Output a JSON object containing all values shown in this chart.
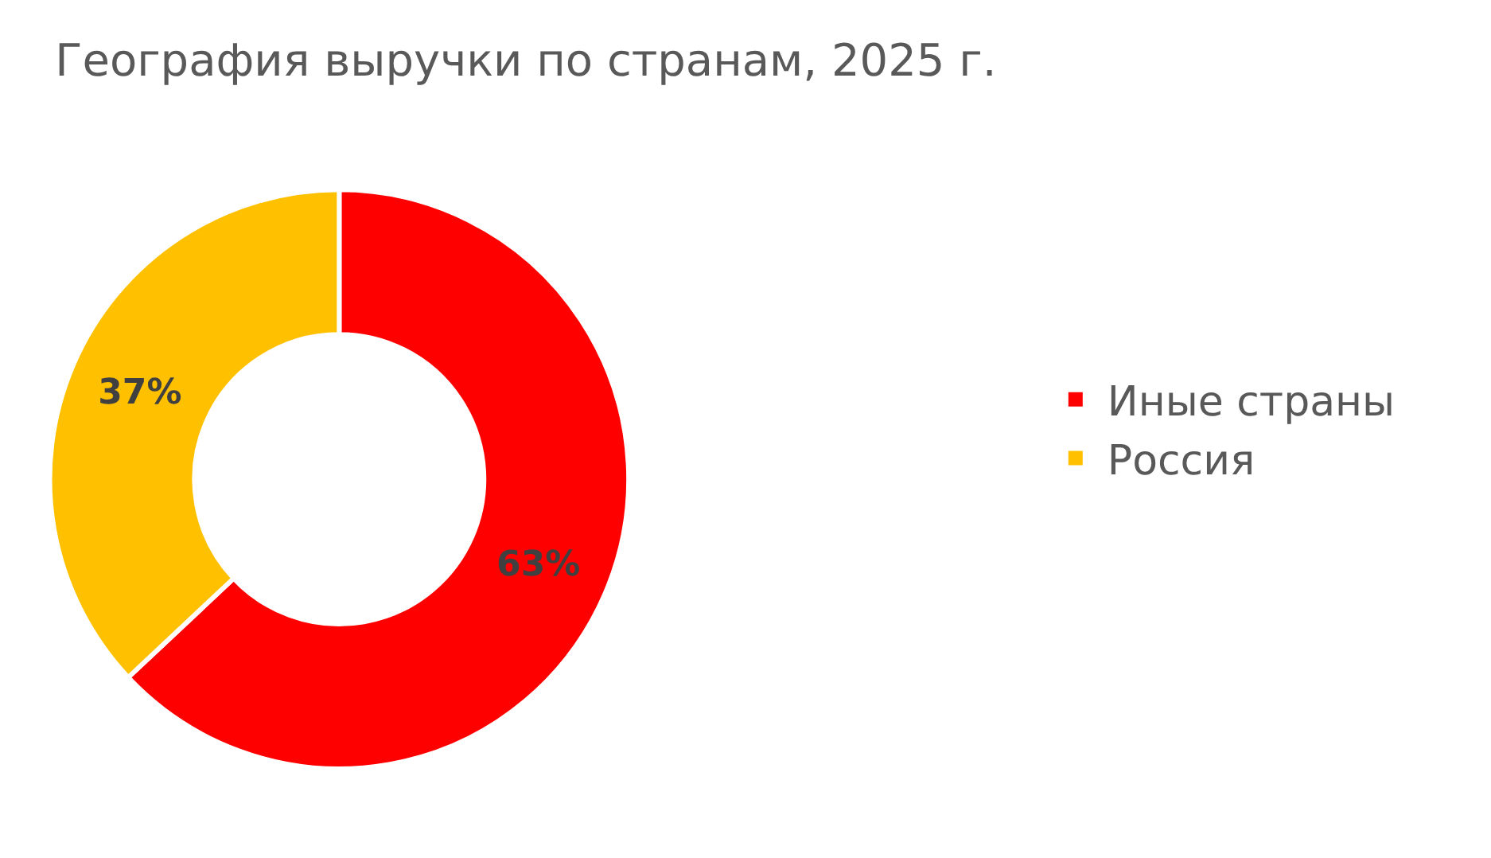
{
  "chart_data": {
    "type": "donut",
    "title": "География выручки по странам, 2025 г.",
    "categories": [
      "Иные страны",
      "Россия"
    ],
    "values": [
      63,
      37
    ],
    "colors": [
      "#ff0000",
      "#ffc000"
    ],
    "value_labels": [
      "63%",
      "37%"
    ],
    "legend": "right"
  }
}
